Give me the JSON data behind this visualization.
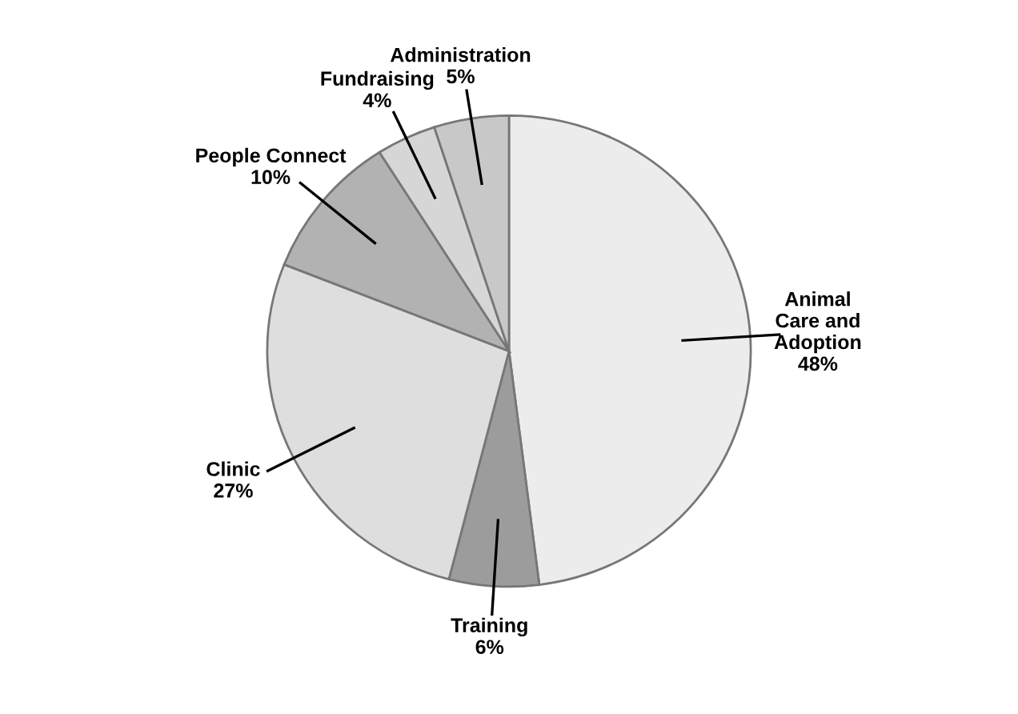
{
  "chart_data": {
    "type": "pie",
    "categories": [
      "Animal\nCare and\nAdoption",
      "Training",
      "Clinic",
      "People Connect",
      "Fundraising",
      "Administration"
    ],
    "values": [
      48,
      6,
      27,
      10,
      4,
      5
    ],
    "value_labels": [
      "48%",
      "6%",
      "27%",
      "10%",
      "4%",
      "5%"
    ],
    "colors": [
      "#ececec",
      "#9c9c9c",
      "#dedede",
      "#b2b2b2",
      "#d6d6d6",
      "#c8c8c8"
    ],
    "legend": false
  }
}
